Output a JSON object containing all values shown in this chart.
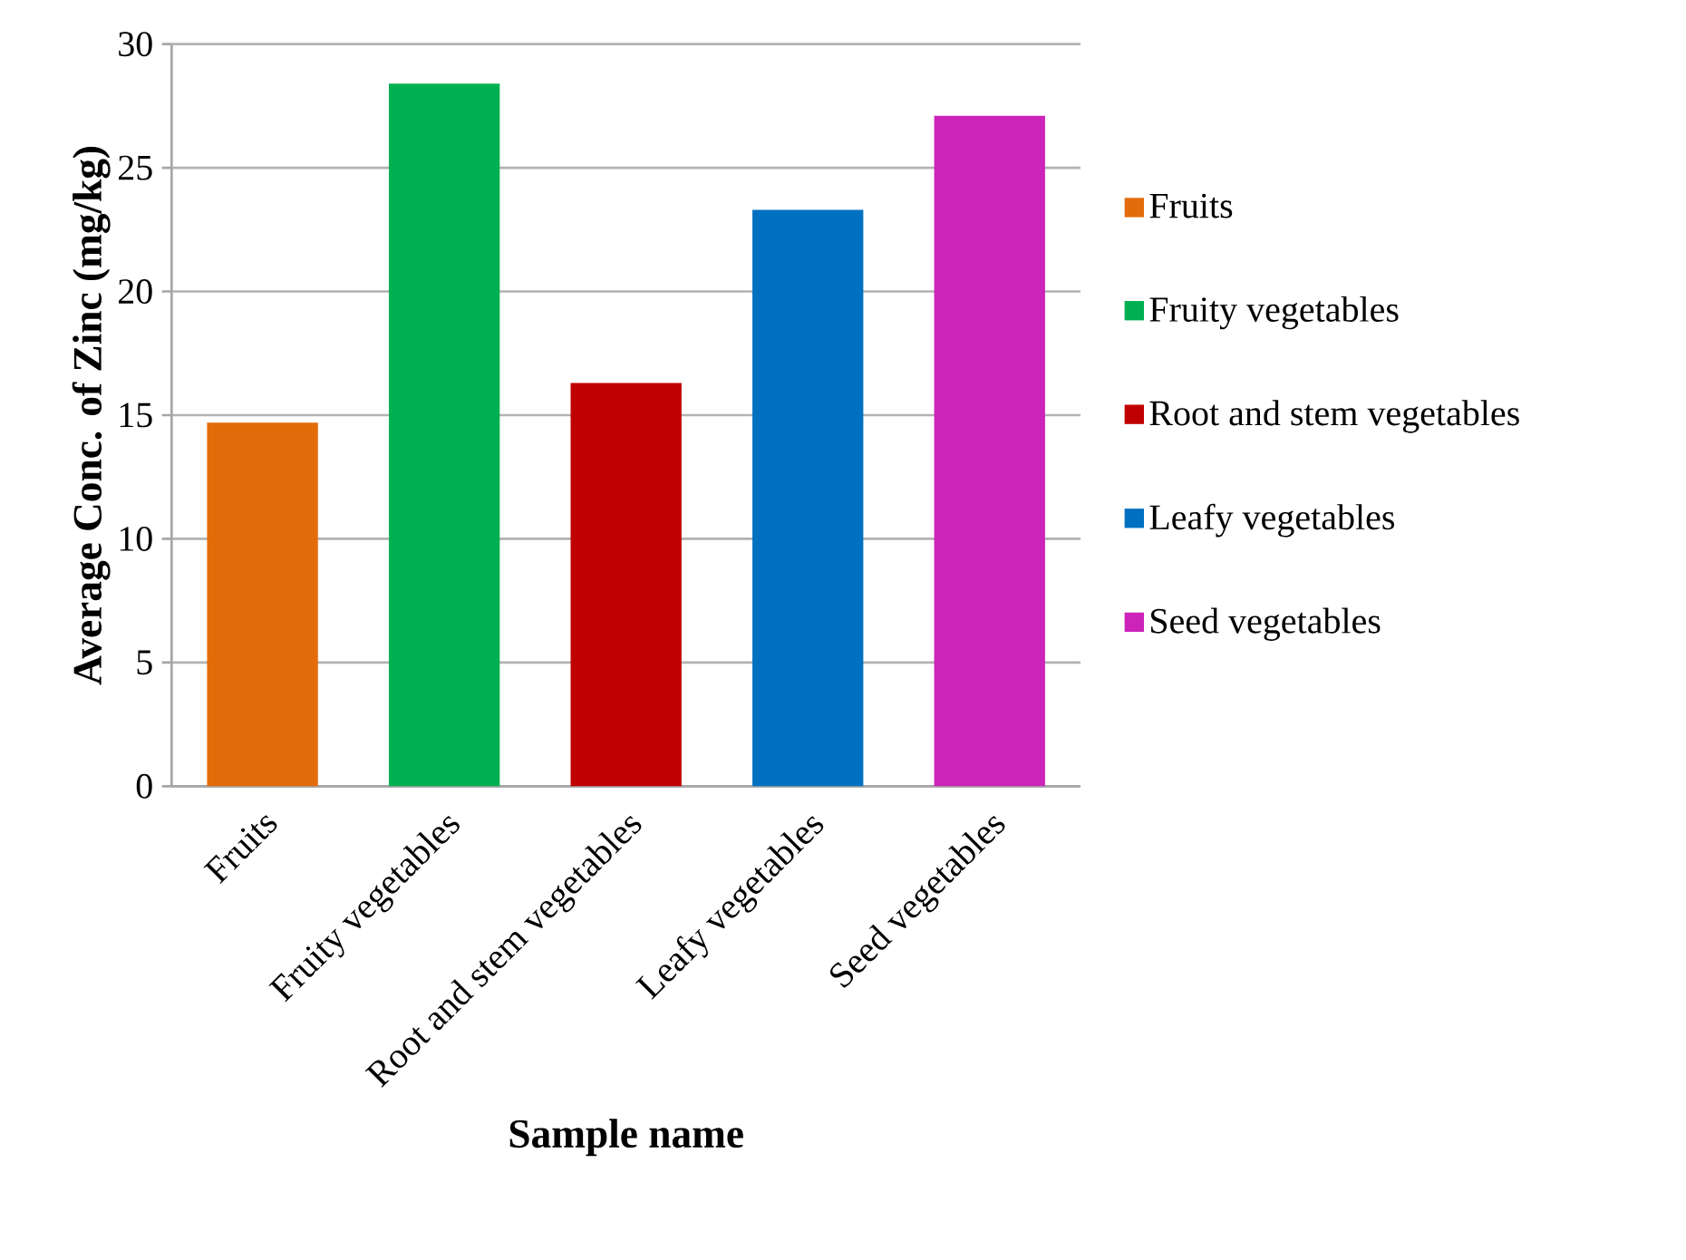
{
  "chart_data": {
    "type": "bar",
    "xlabel": "Sample name",
    "ylabel": "Average Conc. of Zinc  (mg/kg)",
    "categories": [
      "Fruits",
      "Fruity vegetables",
      "Root and stem vegetables",
      "Leafy vegetables",
      "Seed vegetables"
    ],
    "series": [
      {
        "name": "Fruits",
        "color": "#e36c0a",
        "values": [
          14.7,
          null,
          null,
          null,
          null
        ]
      },
      {
        "name": "Fruity vegetables",
        "color": "#00b050",
        "values": [
          null,
          28.4,
          null,
          null,
          null
        ]
      },
      {
        "name": "Root and stem vegetables",
        "color": "#c00000",
        "values": [
          null,
          null,
          16.3,
          null,
          null
        ]
      },
      {
        "name": "Leafy vegetables",
        "color": "#0070c0",
        "values": [
          null,
          null,
          null,
          23.3,
          null
        ]
      },
      {
        "name": "Seed vegetables",
        "color": "#cc23b8",
        "values": [
          null,
          null,
          null,
          null,
          27.1
        ]
      }
    ],
    "ylim": [
      0,
      30
    ],
    "yticks": [
      0,
      5,
      10,
      15,
      20,
      25,
      30
    ],
    "grid": "y",
    "legend": "right"
  }
}
